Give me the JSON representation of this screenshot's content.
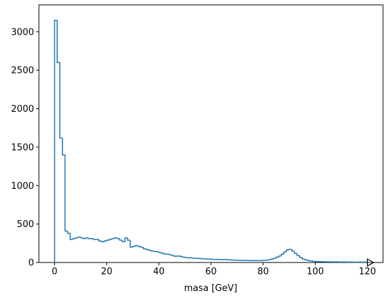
{
  "chart_data": {
    "type": "histogram",
    "xlabel": "masa [GeV]",
    "color": "#1f77b4",
    "bins": [
      0,
      1,
      2,
      3,
      4,
      5,
      6,
      7,
      8,
      9,
      10,
      11,
      12,
      13,
      14,
      15,
      16,
      17,
      18,
      19,
      20,
      21,
      22,
      23,
      24,
      25,
      26,
      27,
      28,
      29,
      30,
      31,
      32,
      33,
      34,
      35,
      36,
      37,
      38,
      39,
      40,
      41,
      42,
      43,
      44,
      45,
      46,
      47,
      48,
      49,
      50,
      51,
      52,
      53,
      54,
      55,
      56,
      57,
      58,
      59,
      60,
      61,
      62,
      63,
      64,
      65,
      66,
      67,
      68,
      69,
      70,
      71,
      72,
      73,
      74,
      75,
      76,
      77,
      78,
      79,
      80,
      81,
      82,
      83,
      84,
      85,
      86,
      87,
      88,
      89,
      90,
      91,
      92,
      93,
      94,
      95,
      96,
      97,
      98,
      99,
      100,
      101,
      102,
      103,
      104,
      105,
      106,
      107,
      108,
      109,
      110,
      111,
      112,
      113,
      114,
      115,
      116,
      117,
      118,
      119,
      120
    ],
    "values": [
      3150,
      2600,
      1620,
      1400,
      410,
      380,
      300,
      310,
      320,
      330,
      320,
      310,
      320,
      310,
      310,
      300,
      300,
      280,
      270,
      280,
      290,
      300,
      310,
      320,
      310,
      290,
      270,
      320,
      290,
      200,
      210,
      220,
      210,
      200,
      180,
      170,
      160,
      150,
      145,
      140,
      130,
      120,
      110,
      110,
      100,
      90,
      80,
      85,
      80,
      70,
      65,
      60,
      62,
      55,
      55,
      52,
      50,
      48,
      45,
      45,
      42,
      40,
      40,
      38,
      38,
      40,
      35,
      35,
      32,
      30,
      30,
      28,
      28,
      28,
      26,
      26,
      25,
      25,
      25,
      25,
      28,
      30,
      35,
      45,
      55,
      70,
      85,
      110,
      140,
      165,
      170,
      150,
      120,
      90,
      65,
      45,
      35,
      25,
      20,
      15,
      12,
      11,
      10,
      10,
      9,
      9,
      8,
      8,
      8,
      7,
      7,
      7,
      6,
      6,
      6,
      5,
      5,
      5,
      5,
      5
    ],
    "xlim": [
      -6,
      126
    ],
    "ylim": [
      0,
      3350
    ],
    "xticks": [
      0,
      20,
      40,
      60,
      80,
      100,
      120
    ],
    "yticks": [
      0,
      500,
      1000,
      1500,
      2000,
      2500,
      3000
    ]
  }
}
